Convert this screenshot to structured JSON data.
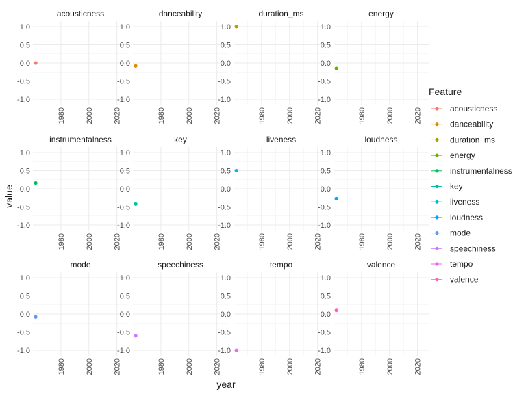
{
  "chart_data": {
    "type": "scatter",
    "facet_by": "feature",
    "facet_layout": {
      "columns": 4,
      "rows": 3
    },
    "xlabel": "year",
    "ylabel": "value",
    "x_ticks": [
      1980,
      2000,
      2020
    ],
    "xlim": [
      1960,
      2028
    ],
    "y_ticks": [
      -1.0,
      -0.5,
      0.0,
      0.5,
      1.0
    ],
    "y_tick_labels": [
      "-1.0",
      "-0.5",
      "0.0",
      "0.5",
      "1.0"
    ],
    "ylim": [
      -1.15,
      1.15
    ],
    "grid": true,
    "legend": {
      "title": "Feature",
      "position": "right"
    },
    "facets": [
      {
        "name": "acousticness",
        "color": "#F8766D",
        "x": 1962,
        "y": 0.0
      },
      {
        "name": "danceability",
        "color": "#DB8E00",
        "x": 1962,
        "y": -0.08
      },
      {
        "name": "duration_ms",
        "color": "#AEA200",
        "x": 1962,
        "y": 1.0
      },
      {
        "name": "energy",
        "color": "#64B200",
        "x": 1962,
        "y": -0.15
      },
      {
        "name": "instrumentalness",
        "color": "#00BD5C",
        "x": 1962,
        "y": 0.16
      },
      {
        "name": "key",
        "color": "#00C1A7",
        "x": 1962,
        "y": -0.42
      },
      {
        "name": "liveness",
        "color": "#00BADE",
        "x": 1962,
        "y": 0.5
      },
      {
        "name": "loudness",
        "color": "#00A6FF",
        "x": 1962,
        "y": -0.27
      },
      {
        "name": "mode",
        "color": "#6495ED",
        "x": 1962,
        "y": -0.08
      },
      {
        "name": "speechiness",
        "color": "#C77CFF",
        "x": 1962,
        "y": -0.6
      },
      {
        "name": "tempo",
        "color": "#EF67EB",
        "x": 1962,
        "y": -1.0
      },
      {
        "name": "valence",
        "color": "#FF63B6",
        "x": 1962,
        "y": 0.1
      }
    ]
  }
}
